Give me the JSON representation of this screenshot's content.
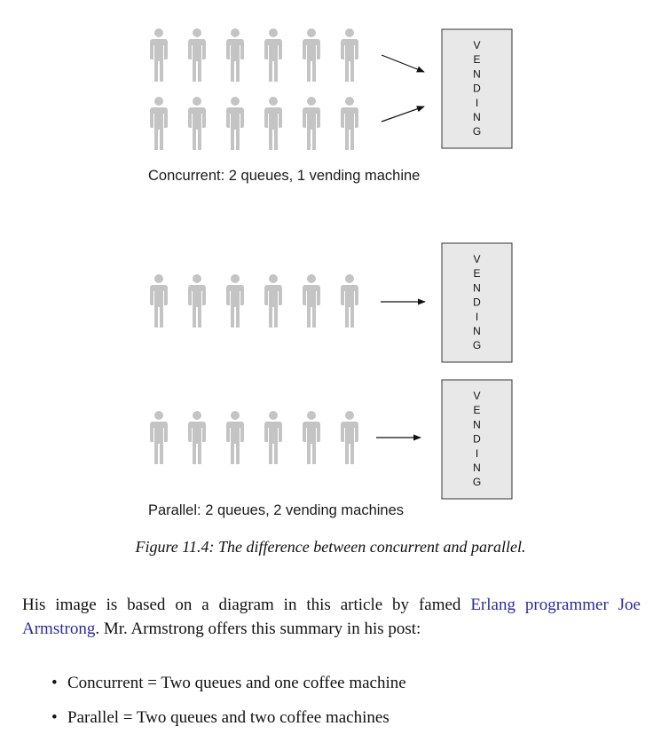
{
  "diagram": {
    "concurrent_label": "Concurrent: 2 queues, 1 vending machine",
    "parallel_label": "Parallel: 2 queues, 2 vending machines",
    "machine_text": "VENDING",
    "person_icon": "person-silhouette-icon",
    "colors": {
      "person": "#c4c4c4",
      "machine_fill": "#e8e8e8",
      "machine_stroke": "#333333"
    }
  },
  "caption": "Figure 11.4: The difference between concurrent and parallel.",
  "paragraph": {
    "before": "His image is based on a diagram in this article by famed ",
    "link_text": "Erlang programmer Joe Armstrong",
    "after": ". Mr. Armstrong offers this summary in his post:"
  },
  "bullets": [
    "Concurrent = Two queues and one coffee machine",
    "Parallel = Two queues and two coffee machines"
  ],
  "link_color": "#2a2aa0"
}
